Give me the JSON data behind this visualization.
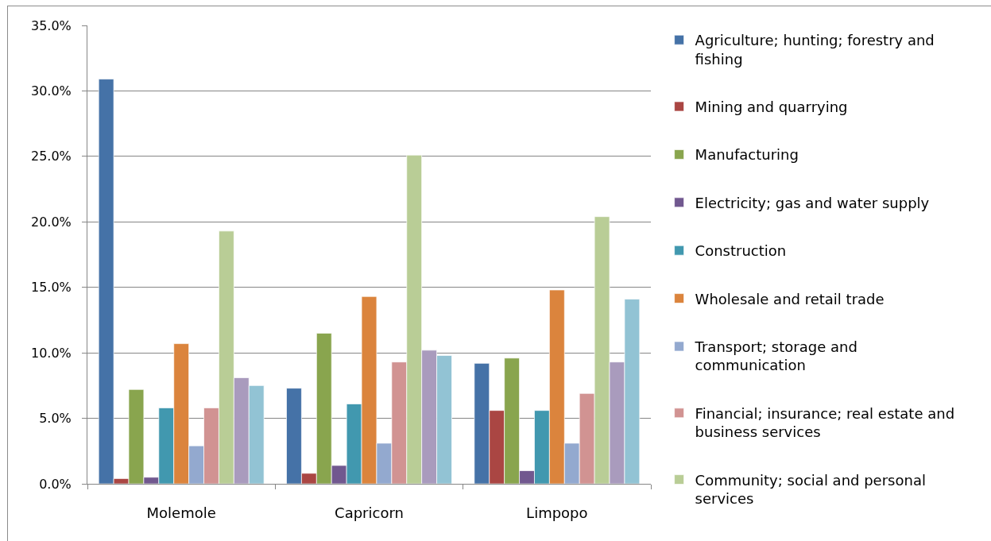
{
  "chart_data": {
    "type": "bar",
    "categories": [
      "Molemole",
      "Capricorn",
      "Limpopo"
    ],
    "series": [
      {
        "name": "Agriculture; hunting; forestry and fishing",
        "color": "#4572a7",
        "values": [
          30.9,
          7.3,
          9.2
        ]
      },
      {
        "name": "Mining and quarrying",
        "color": "#aa4643",
        "values": [
          0.4,
          0.8,
          5.6
        ]
      },
      {
        "name": "Manufacturing",
        "color": "#89a54e",
        "values": [
          7.2,
          11.5,
          9.6
        ]
      },
      {
        "name": "Electricity; gas and water supply",
        "color": "#71588f",
        "values": [
          0.5,
          1.4,
          1.0
        ]
      },
      {
        "name": "Construction",
        "color": "#4198af",
        "values": [
          5.8,
          6.1,
          5.6
        ]
      },
      {
        "name": "Wholesale and retail trade",
        "color": "#db843d",
        "values": [
          10.7,
          14.3,
          14.8
        ]
      },
      {
        "name": "Transport; storage and communication",
        "color": "#93a9cf",
        "values": [
          2.9,
          3.1,
          3.1
        ]
      },
      {
        "name": "Financial; insurance; real estate and business services",
        "color": "#d19392",
        "values": [
          5.8,
          9.3,
          6.9
        ]
      },
      {
        "name": "Community; social and personal services",
        "color": "#b9cd96",
        "values": [
          19.3,
          25.1,
          20.4
        ]
      },
      {
        "color": "#a99bbd",
        "values": [
          8.1,
          10.2,
          9.3
        ]
      },
      {
        "color": "#92c3d4",
        "values": [
          7.5,
          9.8,
          14.1
        ]
      }
    ],
    "ylim": [
      0,
      35
    ],
    "yticks": [
      {
        "value": 0,
        "label": "0.0%"
      },
      {
        "value": 5,
        "label": "5.0%"
      },
      {
        "value": 10,
        "label": "10.0%"
      },
      {
        "value": 15,
        "label": "15.0%"
      },
      {
        "value": 20,
        "label": "20.0%"
      },
      {
        "value": 25,
        "label": "25.0%"
      },
      {
        "value": 30,
        "label": "30.0%"
      },
      {
        "value": 35,
        "label": "35.0%"
      }
    ],
    "grid": "y",
    "legend": "right"
  }
}
